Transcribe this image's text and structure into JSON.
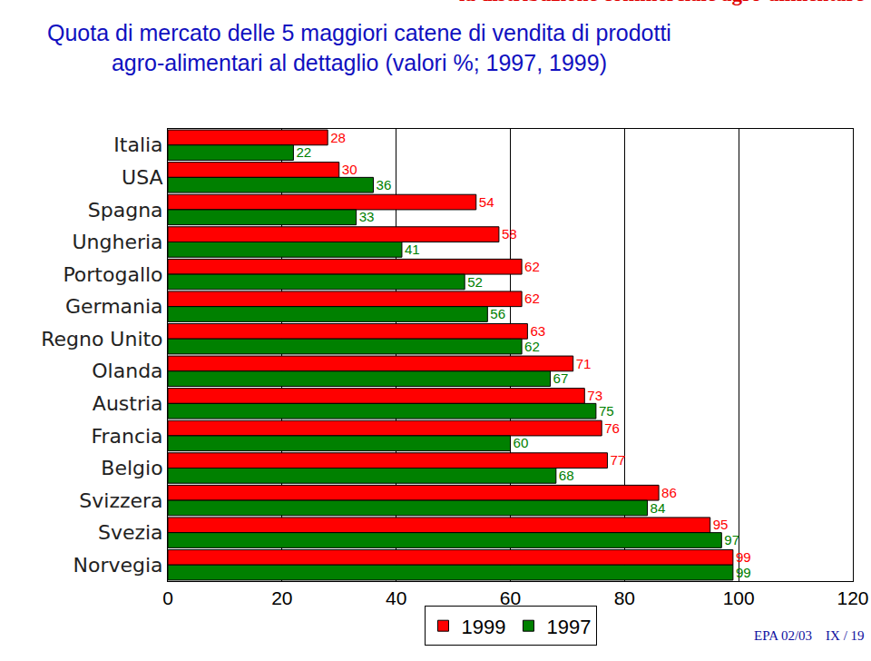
{
  "chart_data": {
    "type": "bar",
    "orientation": "horizontal",
    "subtitle": "la distribuzione commerciale agro-alimentare",
    "title": [
      "Quota di mercato delle 5 maggiori catene di vendita di prodotti",
      "agro-alimentari al dettaglio (valori %; 1997, 1999)"
    ],
    "annotations": [
      "EPA 02/03",
      "IX / 19"
    ],
    "categories": [
      "Italia",
      "USA",
      "Spagna",
      "Ungheria",
      "Portogallo",
      "Germania",
      "Regno Unito",
      "Olanda",
      "Austria",
      "Francia",
      "Belgio",
      "Svizzera",
      "Svezia",
      "Norvegia"
    ],
    "series": [
      {
        "name": "1999",
        "color": "#ff0000",
        "values": [
          28,
          30,
          54,
          58,
          62,
          62,
          63,
          71,
          73,
          76,
          77,
          86,
          95,
          99
        ]
      },
      {
        "name": "1997",
        "color": "#008000",
        "values": [
          22,
          36,
          33,
          41,
          52,
          56,
          62,
          67,
          75,
          60,
          68,
          84,
          97,
          99
        ]
      }
    ],
    "xlim": [
      0,
      120
    ],
    "xticks": [
      0,
      20,
      40,
      60,
      80,
      100,
      120
    ],
    "grid": true,
    "legend": "bottom",
    "data_labels": true
  }
}
